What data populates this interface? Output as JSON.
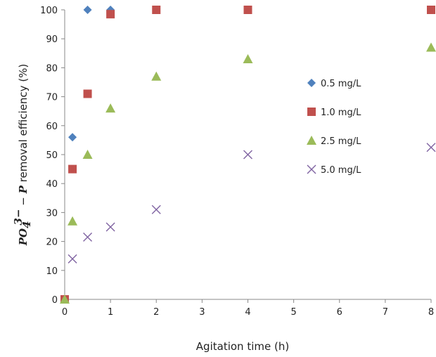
{
  "chart_data": {
    "type": "scatter",
    "xlabel": "Agitation time (h)",
    "ylabel": {
      "species": "PO",
      "subscript": "4",
      "superscript": "3−",
      "dash": " − ",
      "element": "P",
      "rest": " removal efficiency (%)"
    },
    "ylim": [
      0,
      100
    ],
    "y_ticks": [
      "0",
      "10",
      "20",
      "30",
      "40",
      "50",
      "60",
      "70",
      "80",
      "90",
      "100"
    ],
    "x_ticks": [
      "0",
      "1",
      "2",
      "3",
      "4",
      "5",
      "6",
      "7",
      "8"
    ],
    "x_tick_values": [
      0,
      1,
      2,
      3,
      4,
      5,
      6,
      7,
      8
    ],
    "grid": false,
    "legend_position": "right",
    "series": [
      {
        "name": "0.5 mg/L",
        "marker": "diamond",
        "color": "#4F81BD",
        "x": [
          0,
          0.17,
          0.5,
          1
        ],
        "y": [
          0,
          56,
          100,
          100
        ]
      },
      {
        "name": "1.0 mg/L",
        "marker": "square",
        "color": "#C0504D",
        "x": [
          0,
          0.17,
          0.5,
          1,
          2,
          4,
          8
        ],
        "y": [
          0,
          45,
          71,
          98.5,
          100,
          100,
          100
        ]
      },
      {
        "name": "2.5 mg/L",
        "marker": "triangle",
        "color": "#9BBB59",
        "x": [
          0,
          0.17,
          0.5,
          1,
          2,
          4,
          8
        ],
        "y": [
          0,
          27,
          50,
          66,
          77,
          83,
          87
        ]
      },
      {
        "name": "5.0 mg/L",
        "marker": "x",
        "color": "#8064A2",
        "x": [
          0.17,
          0.5,
          1,
          2,
          4,
          8
        ],
        "y": [
          14,
          21.5,
          25,
          31,
          50,
          52.5
        ]
      }
    ]
  }
}
